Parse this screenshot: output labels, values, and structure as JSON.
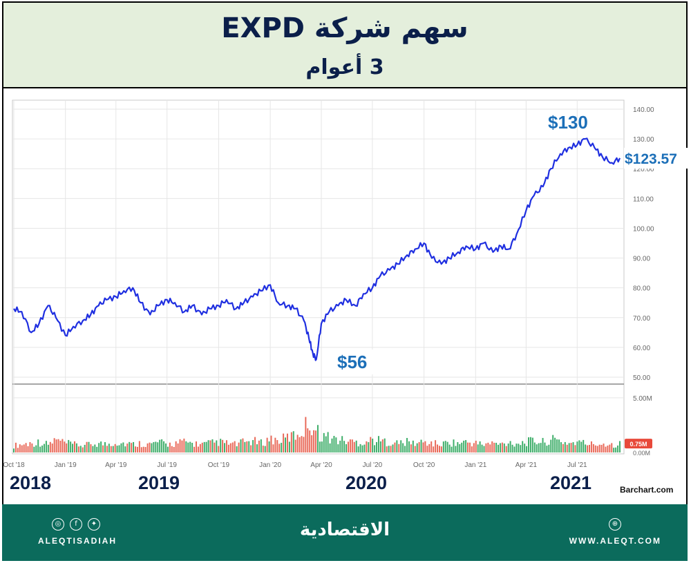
{
  "header": {
    "title": "سهم شركة EXPD",
    "subtitle": "3 أعوام"
  },
  "footer": {
    "brand_left": "ALEQTISADIAH",
    "brand_center": "الاقتصادية",
    "brand_right": "WWW.ALEQT.COM",
    "social_icons": [
      "instagram-icon",
      "facebook-icon",
      "twitter-icon"
    ],
    "globe_icon": "globe-icon"
  },
  "source": "Barchart.com",
  "years": [
    "2018",
    "2019",
    "2020",
    "2021"
  ],
  "chart_data": {
    "type": "line",
    "title": "",
    "line_color": "#1f2fe0",
    "x": [
      "2018-10-01",
      "2018-10-15",
      "2018-11-01",
      "2018-11-15",
      "2018-12-01",
      "2018-12-15",
      "2019-01-01",
      "2019-01-15",
      "2019-02-01",
      "2019-02-15",
      "2019-03-01",
      "2019-03-15",
      "2019-04-01",
      "2019-04-15",
      "2019-05-01",
      "2019-05-15",
      "2019-06-01",
      "2019-06-15",
      "2019-07-01",
      "2019-07-15",
      "2019-08-01",
      "2019-08-15",
      "2019-09-01",
      "2019-09-15",
      "2019-10-01",
      "2019-10-15",
      "2019-11-01",
      "2019-11-15",
      "2019-12-01",
      "2019-12-15",
      "2020-01-01",
      "2020-01-15",
      "2020-02-01",
      "2020-02-15",
      "2020-03-01",
      "2020-03-10",
      "2020-03-17",
      "2020-03-23",
      "2020-04-01",
      "2020-04-15",
      "2020-05-01",
      "2020-05-15",
      "2020-06-01",
      "2020-06-15",
      "2020-07-01",
      "2020-07-15",
      "2020-08-01",
      "2020-08-15",
      "2020-09-01",
      "2020-09-15",
      "2020-10-01",
      "2020-10-15",
      "2020-11-01",
      "2020-11-15",
      "2020-12-01",
      "2020-12-15",
      "2021-01-01",
      "2021-01-15",
      "2021-02-01",
      "2021-02-15",
      "2021-03-01",
      "2021-03-15",
      "2021-04-01",
      "2021-04-15",
      "2021-05-01",
      "2021-05-15",
      "2021-06-01",
      "2021-06-15",
      "2021-07-01",
      "2021-07-15",
      "2021-08-01",
      "2021-08-15",
      "2021-09-01",
      "2021-09-15"
    ],
    "series": [
      {
        "values": [
          73,
          72,
          65,
          68,
          74,
          70,
          64,
          67,
          69,
          71,
          74,
          76,
          77,
          79,
          80,
          75,
          71,
          74,
          76,
          75,
          72,
          74,
          71,
          73,
          74,
          76,
          73,
          75,
          77,
          79,
          81,
          75,
          74,
          73,
          69,
          63,
          58,
          56,
          68,
          72,
          74,
          76,
          74,
          78,
          80,
          84,
          86,
          88,
          91,
          93,
          95,
          90,
          88,
          90,
          92,
          94,
          93,
          95,
          92,
          94,
          93,
          98,
          106,
          111,
          114,
          120,
          125,
          127,
          128,
          130,
          127,
          124,
          122,
          123.57
        ]
      }
    ],
    "volume_millions": [
      0.6,
      0.7,
      0.8,
      0.9,
      0.7,
      1.1,
      0.8,
      0.7,
      0.6,
      0.7,
      0.8,
      0.7,
      0.9,
      0.8,
      0.7,
      0.8,
      0.7,
      0.9,
      0.7,
      0.8,
      0.9,
      0.8,
      0.7,
      0.8,
      0.9,
      0.8,
      0.7,
      0.9,
      1.0,
      0.8,
      1.2,
      1.0,
      1.3,
      1.5,
      2.0,
      2.8,
      2.2,
      1.9,
      1.5,
      1.3,
      1.1,
      1.0,
      0.9,
      0.9,
      1.1,
      1.0,
      0.9,
      0.8,
      0.9,
      0.8,
      0.9,
      0.8,
      0.7,
      0.9,
      0.8,
      0.9,
      0.8,
      0.7,
      0.8,
      0.7,
      0.9,
      0.8,
      0.9,
      1.0,
      0.9,
      1.1,
      1.0,
      0.8,
      0.9,
      0.8,
      0.7,
      0.8,
      0.7,
      0.75
    ],
    "x_ticks": [
      "Oct '18",
      "Jan '19",
      "Apr '19",
      "Jul '19",
      "Oct '19",
      "Jan '20",
      "Apr '20",
      "Jul '20",
      "Oct '20",
      "Jan '21",
      "Apr '21",
      "Jul '21"
    ],
    "y_ticks": [
      "140.00",
      "130.00",
      "120.00",
      "110.00",
      "100.00",
      "90.00",
      "80.00",
      "70.00",
      "60.00",
      "50.00"
    ],
    "ylim": [
      47,
      142
    ],
    "volume_ticks": [
      "5.00M",
      "0.00M"
    ],
    "volume_current": "0.75M",
    "annotations": [
      {
        "text": "$130",
        "value": 130
      },
      {
        "text": "$56",
        "value": 56
      },
      {
        "text": "$123.57",
        "value": 123.57
      }
    ],
    "grid": true
  }
}
